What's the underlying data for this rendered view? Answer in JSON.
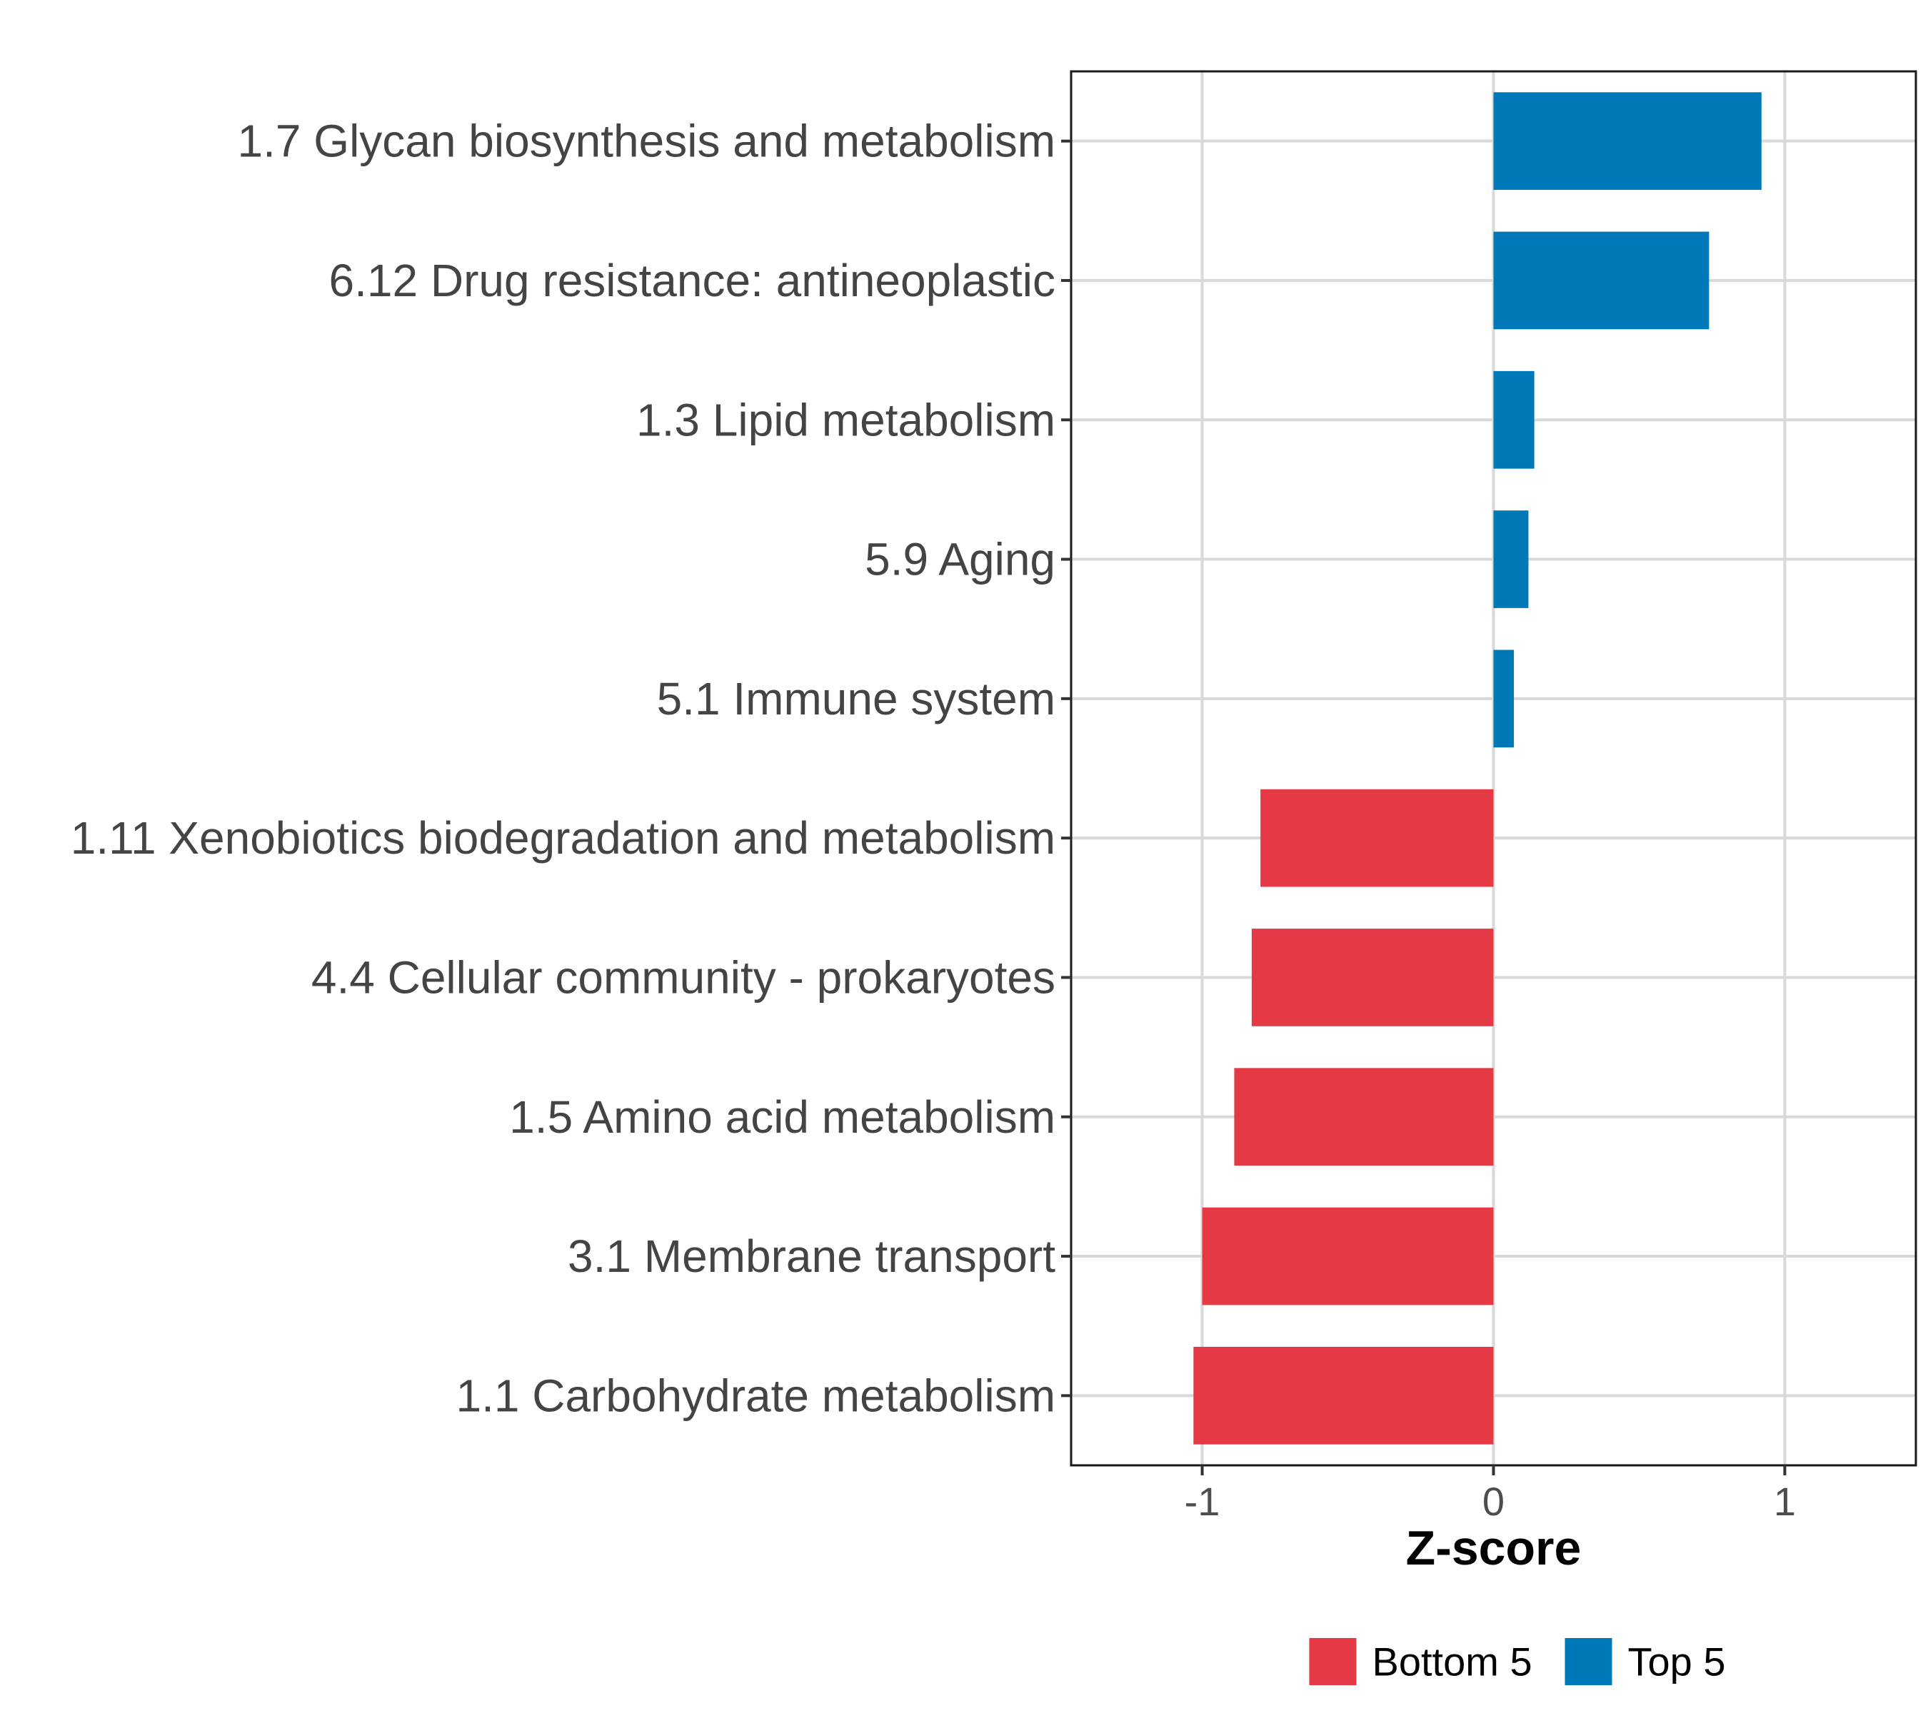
{
  "chart_data": {
    "type": "bar",
    "orientation": "horizontal",
    "categories": [
      "1.7 Glycan biosynthesis and metabolism",
      "6.12 Drug resistance: antineoplastic",
      "1.3 Lipid metabolism",
      "5.9 Aging",
      "5.1 Immune system",
      "1.11 Xenobiotics biodegradation and metabolism",
      "4.4 Cellular community - prokaryotes",
      "1.5 Amino acid metabolism",
      "3.1 Membrane transport",
      "1.1 Carbohydrate metabolism"
    ],
    "values": [
      0.92,
      0.74,
      0.14,
      0.12,
      0.07,
      -0.8,
      -0.83,
      -0.89,
      -1.0,
      -1.03
    ],
    "groups": [
      "Top 5",
      "Top 5",
      "Top 5",
      "Top 5",
      "Top 5",
      "Bottom 5",
      "Bottom 5",
      "Bottom 5",
      "Bottom 5",
      "Bottom 5"
    ],
    "xlabel": "Z-score",
    "ylabel": "",
    "xlim": [
      -1.45,
      1.45
    ],
    "xticks": [
      -1,
      0,
      1
    ],
    "xtick_labels": [
      "-1",
      "0",
      "1"
    ],
    "grid": true,
    "legend": {
      "position": "bottom",
      "entries": [
        {
          "name": "Bottom 5",
          "color": "#E63946"
        },
        {
          "name": "Top 5",
          "color": "#0077B6"
        }
      ]
    },
    "colors": {
      "Top 5": "#0077B6",
      "Bottom 5": "#E63946"
    }
  }
}
